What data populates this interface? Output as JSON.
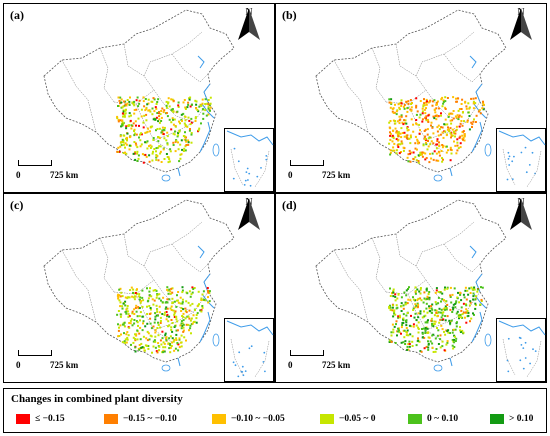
{
  "panels": [
    {
      "label": "(a)",
      "north": "N",
      "scale_start": "0",
      "scale_end": "725 km"
    },
    {
      "label": "(b)",
      "north": "N",
      "scale_start": "0",
      "scale_end": "725 km"
    },
    {
      "label": "(c)",
      "north": "N",
      "scale_start": "0",
      "scale_end": "725 km"
    },
    {
      "label": "(d)",
      "north": "N",
      "scale_start": "0",
      "scale_end": "725 km"
    }
  ],
  "legend": {
    "title": "Changes in combined plant diversity",
    "items": [
      {
        "label": "≤ −0.15",
        "color": "#ff0000"
      },
      {
        "label": "−0.15 ~ −0.10",
        "color": "#ff7f00"
      },
      {
        "label": "−0.10 ~ −0.05",
        "color": "#ffc000"
      },
      {
        "label": "−0.05 ~ 0",
        "color": "#c6e600"
      },
      {
        "label": "0 ~ 0.10",
        "color": "#4cc21c"
      },
      {
        "label": "> 0.10",
        "color": "#139b13"
      }
    ]
  },
  "colors": {
    "river": "#3d9be9",
    "boundary": "#555555",
    "ocean": "#ffffff"
  }
}
